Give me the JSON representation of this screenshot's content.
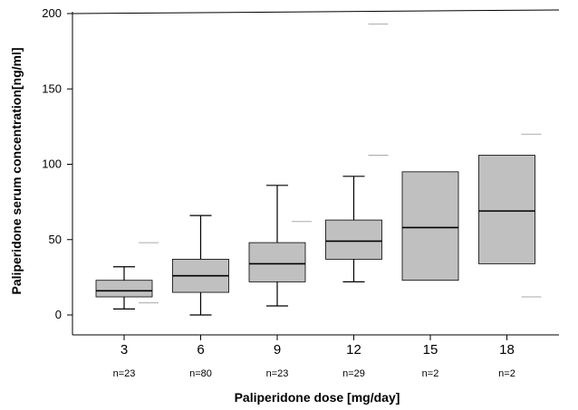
{
  "chart_data": {
    "type": "boxplot",
    "xlabel": "Paliperidone dose [mg/day]",
    "ylabel": "Paliperidone serum concentration[ng/ml]",
    "ylim": [
      -12,
      200
    ],
    "yticks": [
      0,
      50,
      100,
      150,
      200
    ],
    "categories": [
      "3",
      "6",
      "9",
      "12",
      "15",
      "18"
    ],
    "sample_sizes": [
      "n=23",
      "n=80",
      "n=23",
      "n=29",
      "n=2",
      "n=2"
    ],
    "boxes": [
      {
        "dose": "3",
        "whisker_low": 4,
        "q1": 12,
        "median": 16,
        "q3": 23,
        "whisker_high": 32,
        "outliers": [
          8,
          48
        ]
      },
      {
        "dose": "6",
        "whisker_low": 0,
        "q1": 15,
        "median": 26,
        "q3": 37,
        "whisker_high": 66,
        "outliers": []
      },
      {
        "dose": "9",
        "whisker_low": 6,
        "q1": 22,
        "median": 34,
        "q3": 48,
        "whisker_high": 86,
        "outliers": [
          62
        ]
      },
      {
        "dose": "12",
        "whisker_low": 22,
        "q1": 37,
        "median": 49,
        "q3": 63,
        "whisker_high": 92,
        "outliers": [
          106,
          193
        ]
      },
      {
        "dose": "15",
        "whisker_low": null,
        "q1": 23,
        "median": 58,
        "q3": 95,
        "whisker_high": null,
        "outliers": []
      },
      {
        "dose": "18",
        "whisker_low": null,
        "q1": 34,
        "median": 69,
        "q3": 106,
        "whisker_high": null,
        "outliers": [
          12,
          120
        ]
      }
    ],
    "colors": {
      "box_fill": "#c0c0c0",
      "line": "#000000",
      "outlier": "#aaaaaa"
    },
    "grid": false
  }
}
